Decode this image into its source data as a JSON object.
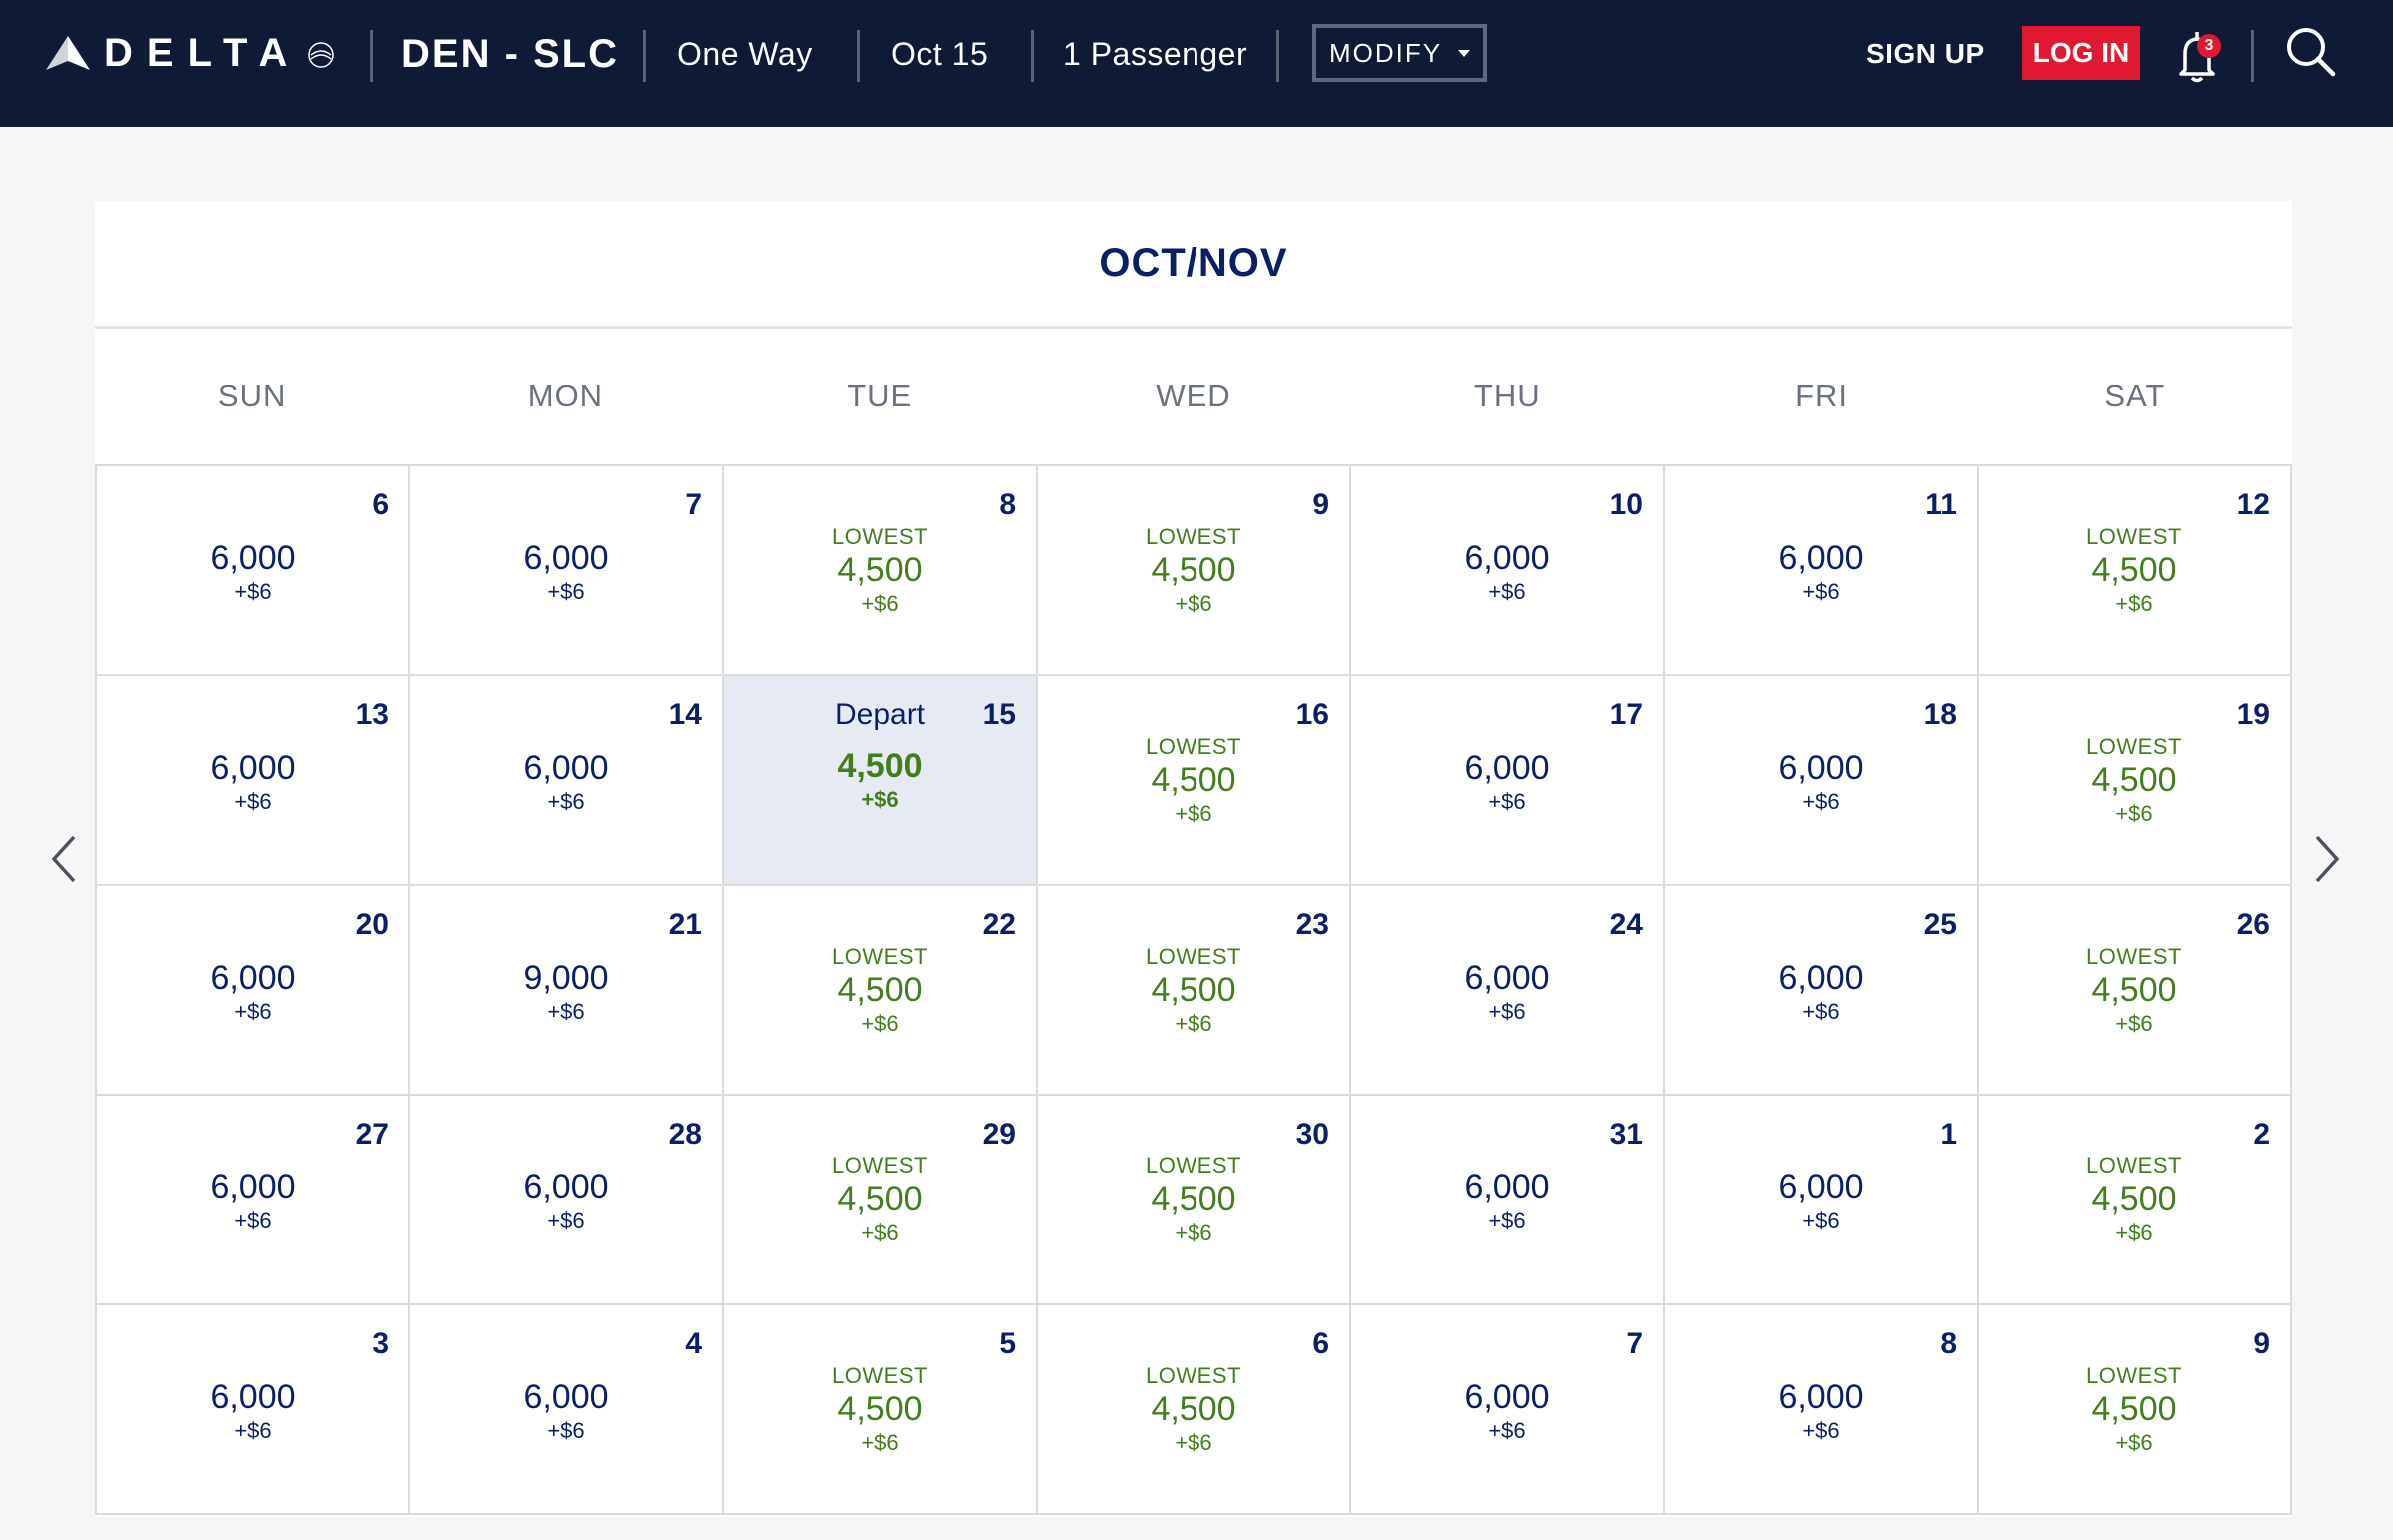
{
  "header": {
    "brand": "DELTA",
    "route": "DEN - SLC",
    "trip_type": "One Way",
    "date": "Oct 15",
    "passengers": "1 Passenger",
    "modify_label": "MODIFY",
    "signup_label": "SIGN UP",
    "login_label": "LOG IN",
    "notification_count": "3",
    "colors": {
      "bar": "#0e1a36",
      "login": "#e01933"
    }
  },
  "calendar": {
    "title": "OCT/NOV",
    "weekdays": [
      "SUN",
      "MON",
      "TUE",
      "WED",
      "THU",
      "FRI",
      "SAT"
    ],
    "lowest_label": "LOWEST",
    "depart_label": "Depart",
    "colors": {
      "text": "#0b1f66",
      "lowest": "#437d1f",
      "selected_bg": "#e6ebf3"
    },
    "days": [
      {
        "day": "6",
        "miles": "6,000",
        "fee": "+$6",
        "lowest": false
      },
      {
        "day": "7",
        "miles": "6,000",
        "fee": "+$6",
        "lowest": false
      },
      {
        "day": "8",
        "miles": "4,500",
        "fee": "+$6",
        "lowest": true
      },
      {
        "day": "9",
        "miles": "4,500",
        "fee": "+$6",
        "lowest": true
      },
      {
        "day": "10",
        "miles": "6,000",
        "fee": "+$6",
        "lowest": false
      },
      {
        "day": "11",
        "miles": "6,000",
        "fee": "+$6",
        "lowest": false
      },
      {
        "day": "12",
        "miles": "4,500",
        "fee": "+$6",
        "lowest": true
      },
      {
        "day": "13",
        "miles": "6,000",
        "fee": "+$6",
        "lowest": false
      },
      {
        "day": "14",
        "miles": "6,000",
        "fee": "+$6",
        "lowest": false
      },
      {
        "day": "15",
        "miles": "4,500",
        "fee": "+$6",
        "lowest": false,
        "selected": true
      },
      {
        "day": "16",
        "miles": "4,500",
        "fee": "+$6",
        "lowest": true
      },
      {
        "day": "17",
        "miles": "6,000",
        "fee": "+$6",
        "lowest": false
      },
      {
        "day": "18",
        "miles": "6,000",
        "fee": "+$6",
        "lowest": false
      },
      {
        "day": "19",
        "miles": "4,500",
        "fee": "+$6",
        "lowest": true
      },
      {
        "day": "20",
        "miles": "6,000",
        "fee": "+$6",
        "lowest": false
      },
      {
        "day": "21",
        "miles": "9,000",
        "fee": "+$6",
        "lowest": false
      },
      {
        "day": "22",
        "miles": "4,500",
        "fee": "+$6",
        "lowest": true
      },
      {
        "day": "23",
        "miles": "4,500",
        "fee": "+$6",
        "lowest": true
      },
      {
        "day": "24",
        "miles": "6,000",
        "fee": "+$6",
        "lowest": false
      },
      {
        "day": "25",
        "miles": "6,000",
        "fee": "+$6",
        "lowest": false
      },
      {
        "day": "26",
        "miles": "4,500",
        "fee": "+$6",
        "lowest": true
      },
      {
        "day": "27",
        "miles": "6,000",
        "fee": "+$6",
        "lowest": false
      },
      {
        "day": "28",
        "miles": "6,000",
        "fee": "+$6",
        "lowest": false
      },
      {
        "day": "29",
        "miles": "4,500",
        "fee": "+$6",
        "lowest": true
      },
      {
        "day": "30",
        "miles": "4,500",
        "fee": "+$6",
        "lowest": true
      },
      {
        "day": "31",
        "miles": "6,000",
        "fee": "+$6",
        "lowest": false
      },
      {
        "day": "1",
        "miles": "6,000",
        "fee": "+$6",
        "lowest": false
      },
      {
        "day": "2",
        "miles": "4,500",
        "fee": "+$6",
        "lowest": true
      },
      {
        "day": "3",
        "miles": "6,000",
        "fee": "+$6",
        "lowest": false
      },
      {
        "day": "4",
        "miles": "6,000",
        "fee": "+$6",
        "lowest": false
      },
      {
        "day": "5",
        "miles": "4,500",
        "fee": "+$6",
        "lowest": true
      },
      {
        "day": "6",
        "miles": "4,500",
        "fee": "+$6",
        "lowest": true
      },
      {
        "day": "7",
        "miles": "6,000",
        "fee": "+$6",
        "lowest": false
      },
      {
        "day": "8",
        "miles": "6,000",
        "fee": "+$6",
        "lowest": false
      },
      {
        "day": "9",
        "miles": "4,500",
        "fee": "+$6",
        "lowest": true
      }
    ]
  },
  "navigation": {
    "prev_icon": "chevron-left-icon",
    "next_icon": "chevron-right-icon"
  }
}
